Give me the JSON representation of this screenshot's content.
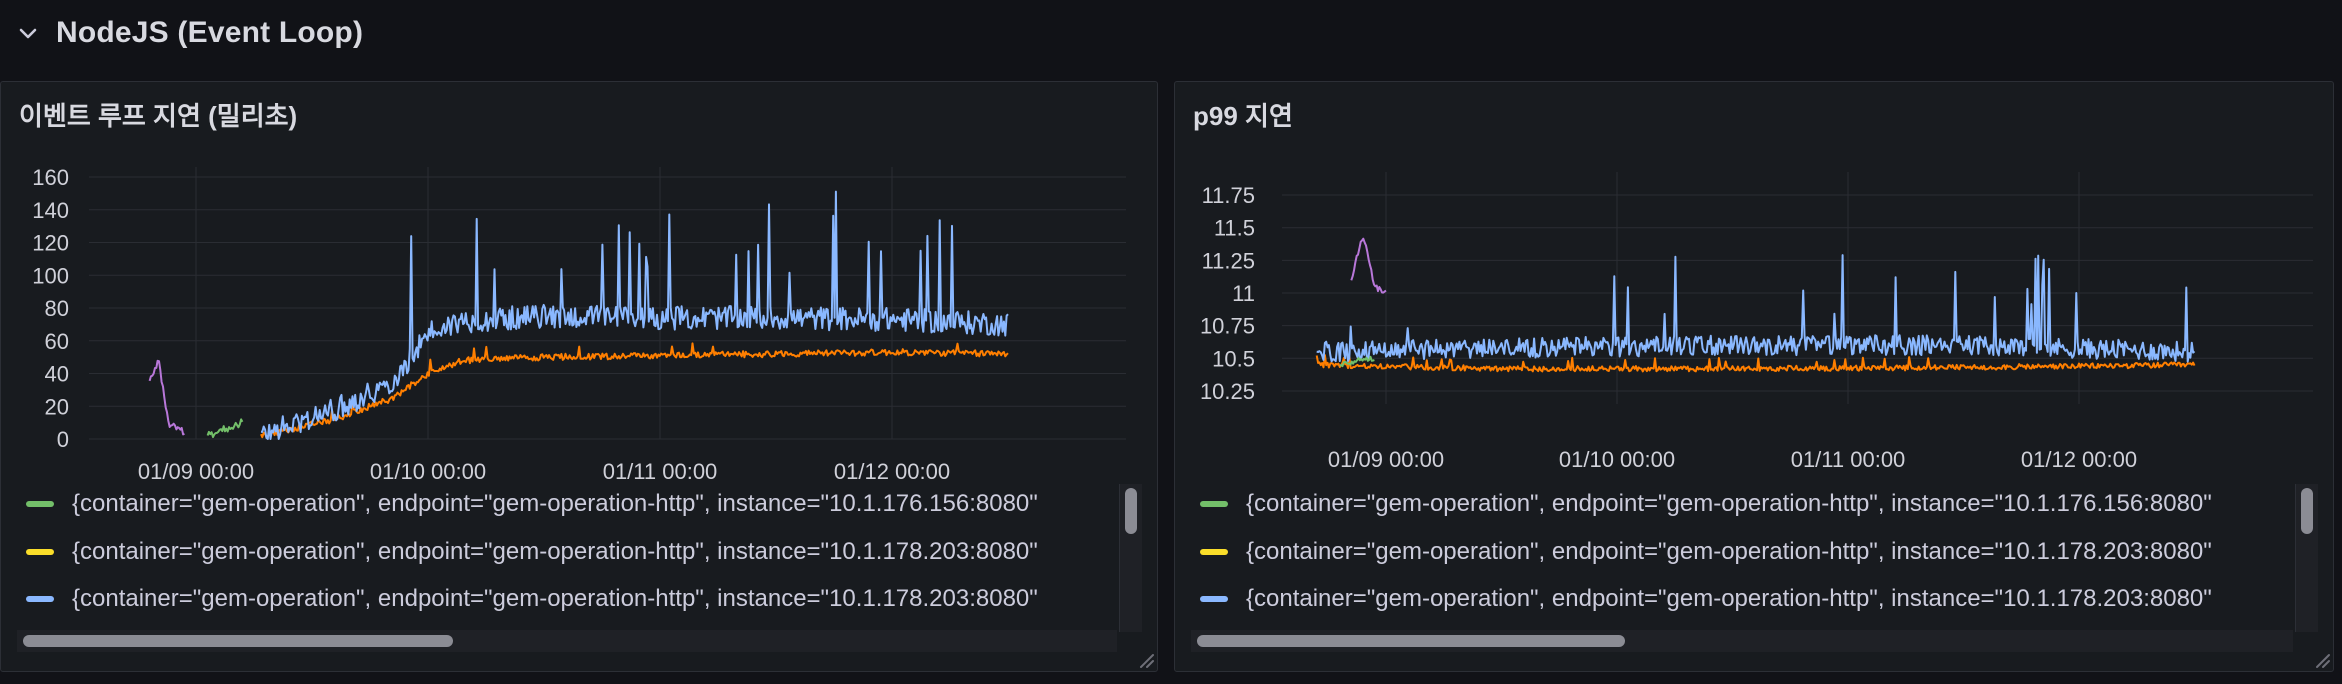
{
  "row": {
    "title": "NodeJS (Event Loop)",
    "icon": "chevron-down-icon"
  },
  "panels": [
    {
      "title": "이벤트 루프 지연 (밀리초)",
      "y_ticks": [
        "160",
        "140",
        "120",
        "100",
        "80",
        "60",
        "40",
        "20",
        "0"
      ],
      "x_ticks": [
        "01/09 00:00",
        "01/10 00:00",
        "01/11 00:00",
        "01/12 00:00"
      ],
      "legend": [
        {
          "label": "{container=\"gem-operation\", endpoint=\"gem-operation-http\", instance=\"10.1.176.156:8080\"",
          "color": "#73bf69"
        },
        {
          "label": "{container=\"gem-operation\", endpoint=\"gem-operation-http\", instance=\"10.1.178.203:8080\"",
          "color": "#fade2a"
        },
        {
          "label": "{container=\"gem-operation\", endpoint=\"gem-operation-http\", instance=\"10.1.178.203:8080\"",
          "color": "#8ab8ff"
        }
      ]
    },
    {
      "title": "p99 지연",
      "y_ticks": [
        "11.75",
        "11.5",
        "11.25",
        "11",
        "10.75",
        "10.5",
        "10.25"
      ],
      "x_ticks": [
        "01/09 00:00",
        "01/10 00:00",
        "01/11 00:00",
        "01/12 00:00"
      ],
      "legend": [
        {
          "label": "{container=\"gem-operation\", endpoint=\"gem-operation-http\", instance=\"10.1.176.156:8080\"",
          "color": "#73bf69"
        },
        {
          "label": "{container=\"gem-operation\", endpoint=\"gem-operation-http\", instance=\"10.1.178.203:8080\"",
          "color": "#fade2a"
        },
        {
          "label": "{container=\"gem-operation\", endpoint=\"gem-operation-http\", instance=\"10.1.178.203:8080\"",
          "color": "#8ab8ff"
        }
      ]
    }
  ],
  "chart_data": [
    {
      "type": "line",
      "title": "이벤트 루프 지연 (밀리초)",
      "ylim": [
        0,
        160
      ],
      "yticks": [
        0,
        20,
        40,
        60,
        80,
        100,
        120,
        140,
        160
      ],
      "xticks": [
        "01/09 00:00",
        "01/10 00:00",
        "01/11 00:00",
        "01/12 00:00"
      ],
      "grid": true,
      "legend": "bottom",
      "series": [
        {
          "color": "#ff7f00",
          "points": [
            [
              0.28,
              2
            ],
            [
              0.6,
              12
            ],
            [
              0.85,
              25
            ],
            [
              1.0,
              40
            ],
            [
              1.15,
              48
            ],
            [
              1.5,
              50
            ],
            [
              2.0,
              51
            ],
            [
              2.5,
              52
            ],
            [
              3.0,
              53
            ],
            [
              3.5,
              52
            ]
          ]
        },
        {
          "color": "#8ab8ff",
          "points": [
            [
              0.28,
              2
            ],
            [
              0.6,
              18
            ],
            [
              0.85,
              35
            ],
            [
              1.0,
              65
            ],
            [
              1.15,
              72
            ],
            [
              1.5,
              75
            ],
            [
              2.0,
              74
            ],
            [
              2.5,
              74
            ],
            [
              3.0,
              73
            ],
            [
              3.5,
              70
            ]
          ]
        },
        {
          "color": "#b877d9",
          "points": [
            [
              -0.2,
              35
            ],
            [
              -0.16,
              48
            ],
            [
              -0.12,
              10
            ],
            [
              -0.08,
              5
            ],
            [
              -0.05,
              5
            ]
          ]
        },
        {
          "color": "#73bf69",
          "points": [
            [
              0.05,
              2
            ],
            [
              0.1,
              5
            ],
            [
              0.2,
              10
            ]
          ]
        }
      ]
    },
    {
      "type": "line",
      "title": "p99 지연",
      "ylim": [
        10.15,
        11.85
      ],
      "yticks": [
        10.25,
        10.5,
        10.75,
        11,
        11.25,
        11.5,
        11.75
      ],
      "xticks": [
        "01/09 00:00",
        "01/10 00:00",
        "01/11 00:00",
        "01/12 00:00"
      ],
      "grid": true,
      "legend": "bottom",
      "series": [
        {
          "color": "#ff7f00",
          "points": [
            [
              -0.3,
              10.45
            ],
            [
              0.5,
              10.42
            ],
            [
              1.5,
              10.42
            ],
            [
              2.5,
              10.43
            ],
            [
              3.5,
              10.45
            ]
          ]
        },
        {
          "color": "#8ab8ff",
          "points": [
            [
              -0.3,
              10.55
            ],
            [
              0.5,
              10.58
            ],
            [
              1.5,
              10.6
            ],
            [
              2.5,
              10.6
            ],
            [
              3.5,
              10.55
            ]
          ]
        },
        {
          "color": "#b877d9",
          "points": [
            [
              -0.15,
              11.1
            ],
            [
              -0.1,
              11.45
            ],
            [
              -0.05,
              11.05
            ],
            [
              0.0,
              11.0
            ]
          ]
        },
        {
          "color": "#73bf69",
          "points": [
            [
              -0.2,
              10.45
            ],
            [
              -0.1,
              10.5
            ],
            [
              -0.05,
              10.5
            ]
          ]
        }
      ]
    }
  ]
}
